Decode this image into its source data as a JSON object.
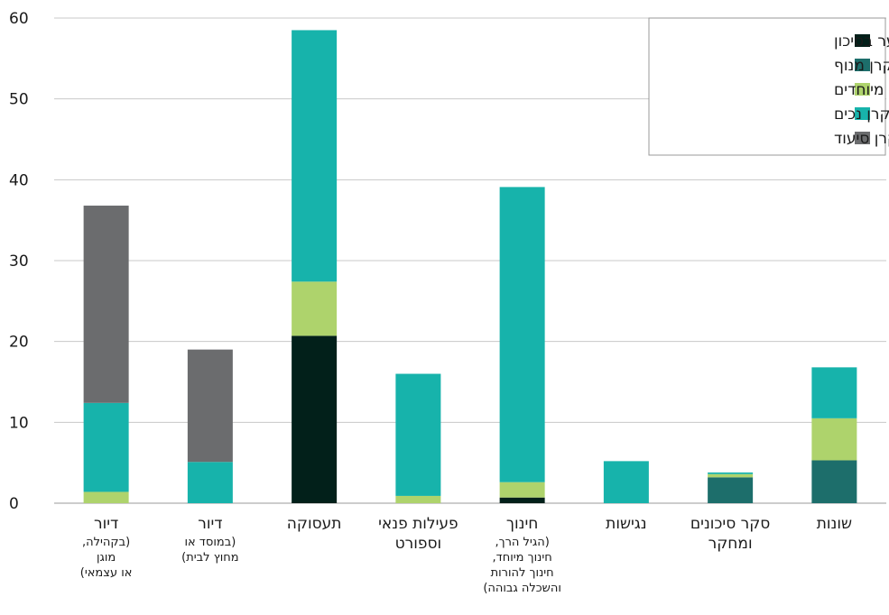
{
  "chart_data": {
    "type": "bar",
    "stacked": true,
    "ylim": [
      0,
      60
    ],
    "yticks": [
      0,
      10,
      20,
      30,
      40,
      50,
      60
    ],
    "grid": true,
    "legend_position": "top-right",
    "categories": [
      {
        "label": "דיור",
        "sublabel": [
          "(בקהילה,",
          "מוגן",
          "או עצמאי)"
        ]
      },
      {
        "label": "דיור",
        "sublabel": [
          "(במוסד או",
          "מחוץ לבית)"
        ]
      },
      {
        "label": "תעסוקה",
        "sublabel": []
      },
      {
        "label": "פעילות פנאי",
        "sublabel": [
          "וספורט"
        ]
      },
      {
        "label": "חינוך",
        "sublabel": [
          "(הגיל הרך,",
          "חינוך מיוחד,",
          "חינוך להורות",
          "והשכלה גבוהה)"
        ]
      },
      {
        "label": "נגישות",
        "sublabel": []
      },
      {
        "label": "סקר סיכונים",
        "sublabel": [
          "ומחקר"
        ]
      },
      {
        "label": "שונות",
        "sublabel": []
      }
    ],
    "series": [
      {
        "name": "קרן ילדים ונוער בסיכון",
        "color": "#02201a",
        "values": [
          0,
          0,
          20.7,
          0,
          0.7,
          0,
          0,
          0
        ]
      },
      {
        "name": "קרן מנוף",
        "color": "#1d6e6b",
        "values": [
          0,
          0,
          0,
          0,
          0,
          0,
          3.2,
          5.3
        ]
      },
      {
        "name": "קרן מפעלים מיוחדים",
        "color": "#aed36c",
        "values": [
          1.4,
          0,
          6.7,
          0.9,
          1.9,
          0,
          0.4,
          5.2
        ]
      },
      {
        "name": "קרן נכים",
        "color": "#17b3ab",
        "values": [
          11.0,
          5.1,
          31.1,
          15.1,
          36.5,
          5.2,
          0.2,
          6.3
        ]
      },
      {
        "name": "קרן סיעוד",
        "color": "#6b6c6e",
        "values": [
          24.4,
          13.9,
          0,
          0,
          0,
          0,
          0,
          0
        ]
      }
    ]
  }
}
